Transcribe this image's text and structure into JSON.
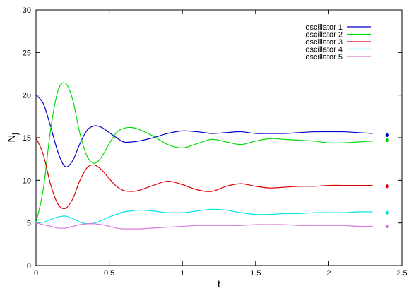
{
  "chart_data": {
    "type": "line",
    "title": "",
    "xlabel": "t",
    "ylabel": "N",
    "ylabel_sub": "j",
    "xlim": [
      0,
      2.5
    ],
    "ylim": [
      0,
      30
    ],
    "xticks": [
      0,
      0.5,
      1,
      1.5,
      2,
      2.5
    ],
    "yticks": [
      0,
      5,
      10,
      15,
      20,
      25,
      30
    ],
    "x_tick_labels": [
      "0",
      "0.5",
      "1",
      "1.5",
      "2",
      "2.5"
    ],
    "y_tick_labels": [
      "0",
      "5",
      "10",
      "15",
      "20",
      "25",
      "30"
    ],
    "grid": false,
    "legend_position": "top-right",
    "series": [
      {
        "name": "oscillator 1",
        "color": "#0000cc",
        "x": [
          0,
          0.05,
          0.1,
          0.15,
          0.2,
          0.25,
          0.3,
          0.35,
          0.4,
          0.45,
          0.5,
          0.55,
          0.6,
          0.65,
          0.7,
          0.8,
          0.9,
          1.0,
          1.1,
          1.2,
          1.3,
          1.4,
          1.5,
          1.6,
          1.7,
          1.8,
          1.9,
          2.0,
          2.1,
          2.2,
          2.3
        ],
        "y": [
          20.0,
          19.0,
          16.3,
          13.3,
          11.6,
          12.3,
          14.3,
          15.9,
          16.4,
          16.2,
          15.6,
          15.0,
          14.5,
          14.5,
          14.6,
          15.0,
          15.5,
          15.8,
          15.7,
          15.5,
          15.6,
          15.7,
          15.5,
          15.5,
          15.5,
          15.6,
          15.7,
          15.7,
          15.7,
          15.6,
          15.5
        ]
      },
      {
        "name": "oscillator 2",
        "color": "#00dd00",
        "x": [
          0,
          0.05,
          0.1,
          0.15,
          0.2,
          0.25,
          0.3,
          0.35,
          0.4,
          0.45,
          0.5,
          0.55,
          0.6,
          0.65,
          0.7,
          0.8,
          0.9,
          1.0,
          1.1,
          1.2,
          1.3,
          1.4,
          1.5,
          1.6,
          1.7,
          1.8,
          1.9,
          2.0,
          2.1,
          2.2,
          2.3
        ],
        "y": [
          5.0,
          9.0,
          16.0,
          20.5,
          21.4,
          19.5,
          15.5,
          12.8,
          12.0,
          12.8,
          14.3,
          15.6,
          16.1,
          16.2,
          16.0,
          15.2,
          14.2,
          13.8,
          14.3,
          14.8,
          14.5,
          14.2,
          14.6,
          14.9,
          14.8,
          14.7,
          14.6,
          14.4,
          14.4,
          14.5,
          14.6
        ]
      },
      {
        "name": "oscillator 3",
        "color": "#dd0000",
        "x": [
          0,
          0.05,
          0.1,
          0.15,
          0.2,
          0.25,
          0.3,
          0.35,
          0.4,
          0.45,
          0.5,
          0.55,
          0.6,
          0.65,
          0.7,
          0.8,
          0.9,
          1.0,
          1.1,
          1.2,
          1.3,
          1.4,
          1.5,
          1.6,
          1.7,
          1.8,
          1.9,
          2.0,
          2.1,
          2.2,
          2.3
        ],
        "y": [
          15.0,
          13.0,
          9.5,
          7.2,
          6.7,
          7.8,
          10.0,
          11.5,
          11.8,
          11.2,
          10.2,
          9.3,
          8.8,
          8.7,
          8.8,
          9.4,
          9.9,
          9.5,
          8.9,
          8.7,
          9.3,
          9.6,
          9.3,
          9.1,
          9.2,
          9.3,
          9.3,
          9.4,
          9.4,
          9.4,
          9.4
        ]
      },
      {
        "name": "oscillator 4",
        "color": "#00e5e5",
        "x": [
          0,
          0.05,
          0.1,
          0.15,
          0.2,
          0.25,
          0.3,
          0.35,
          0.4,
          0.45,
          0.5,
          0.55,
          0.6,
          0.65,
          0.7,
          0.8,
          0.9,
          1.0,
          1.1,
          1.2,
          1.3,
          1.4,
          1.5,
          1.6,
          1.7,
          1.8,
          1.9,
          2.0,
          2.1,
          2.2,
          2.3
        ],
        "y": [
          5.0,
          5.1,
          5.4,
          5.7,
          5.8,
          5.5,
          5.1,
          4.9,
          5.0,
          5.3,
          5.7,
          6.0,
          6.3,
          6.4,
          6.5,
          6.4,
          6.2,
          6.2,
          6.4,
          6.6,
          6.5,
          6.2,
          6.0,
          6.0,
          6.1,
          6.1,
          6.2,
          6.2,
          6.2,
          6.3,
          6.3
        ]
      },
      {
        "name": "oscillator 5",
        "color": "#dd77dd",
        "x": [
          0,
          0.05,
          0.1,
          0.15,
          0.2,
          0.25,
          0.3,
          0.35,
          0.4,
          0.45,
          0.5,
          0.55,
          0.6,
          0.65,
          0.7,
          0.8,
          0.9,
          1.0,
          1.1,
          1.2,
          1.3,
          1.4,
          1.5,
          1.6,
          1.7,
          1.8,
          1.9,
          2.0,
          2.1,
          2.2,
          2.3
        ],
        "y": [
          5.0,
          4.8,
          4.6,
          4.4,
          4.4,
          4.6,
          4.8,
          4.9,
          4.9,
          4.8,
          4.6,
          4.4,
          4.3,
          4.3,
          4.3,
          4.4,
          4.5,
          4.6,
          4.7,
          4.7,
          4.7,
          4.7,
          4.8,
          4.8,
          4.8,
          4.7,
          4.7,
          4.7,
          4.7,
          4.6,
          4.6
        ]
      }
    ],
    "end_markers": [
      {
        "name": "oscillator 1",
        "x": 2.4,
        "y": 15.3,
        "color": "#0000cc"
      },
      {
        "name": "oscillator 2",
        "x": 2.4,
        "y": 14.7,
        "color": "#00cc00"
      },
      {
        "name": "oscillator 3",
        "x": 2.4,
        "y": 9.3,
        "color": "#dd0000"
      },
      {
        "name": "oscillator 4",
        "x": 2.4,
        "y": 6.2,
        "color": "#00e5e5"
      },
      {
        "name": "oscillator 5",
        "x": 2.4,
        "y": 4.6,
        "color": "#dd77dd"
      }
    ]
  }
}
